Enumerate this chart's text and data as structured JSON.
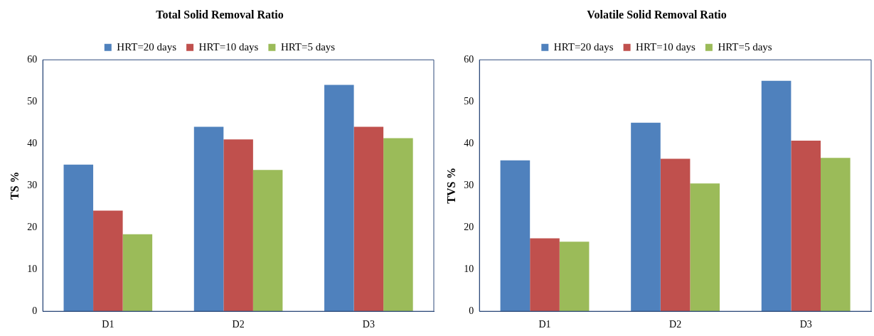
{
  "chart_data": [
    {
      "type": "bar",
      "title": "Total Solid Removal Ratio",
      "ylabel": "TS %",
      "categories": [
        "D1",
        "D2",
        "D3"
      ],
      "series": [
        {
          "name": "HRT=20 days",
          "color": "#4f81bd",
          "values": [
            35,
            44,
            54
          ]
        },
        {
          "name": "HRT=10 days",
          "color": "#c0504d",
          "values": [
            24,
            41,
            44
          ]
        },
        {
          "name": "HRT=5 days",
          "color": "#9bbb59",
          "values": [
            18.4,
            33.7,
            41.3
          ]
        }
      ],
      "ylim": [
        0,
        60
      ],
      "yticks": [
        0,
        10,
        20,
        30,
        40,
        50,
        60
      ],
      "grid": false,
      "legend": "top"
    },
    {
      "type": "bar",
      "title": "Volatile Solid Removal Ratio",
      "ylabel": "TVS %",
      "categories": [
        "D1",
        "D2",
        "D3"
      ],
      "series": [
        {
          "name": "HRT=20 days",
          "color": "#4f81bd",
          "values": [
            36,
            45,
            55
          ]
        },
        {
          "name": "HRT=10 days",
          "color": "#c0504d",
          "values": [
            17.4,
            36.4,
            40.7
          ]
        },
        {
          "name": "HRT=5 days",
          "color": "#9bbb59",
          "values": [
            16.6,
            30.5,
            36.6
          ]
        }
      ],
      "ylim": [
        0,
        60
      ],
      "yticks": [
        0,
        10,
        20,
        30,
        40,
        50,
        60
      ],
      "grid": false,
      "legend": "top"
    }
  ]
}
